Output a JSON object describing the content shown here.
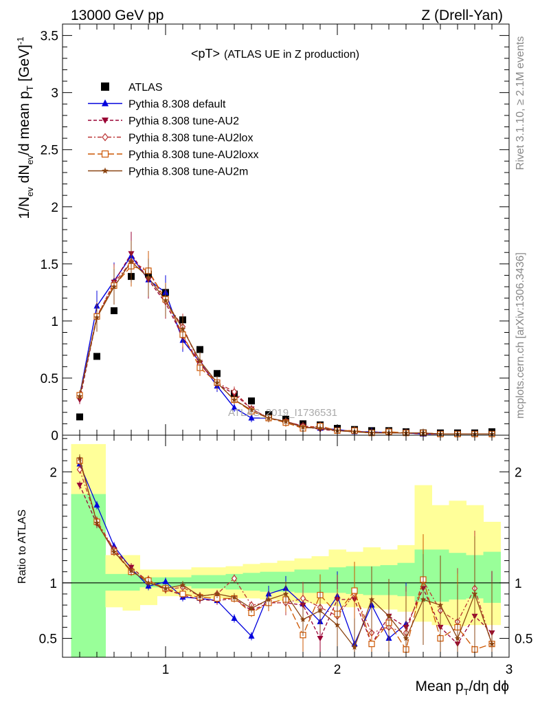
{
  "header": {
    "left": "13000 GeV pp",
    "right": "Z (Drell-Yan)"
  },
  "side_texts": {
    "rivet": "Rivet 3.1.10, ≥ 2.1M events",
    "mcplots": "mcplots.cern.ch [arXiv:1306.3436]"
  },
  "watermark": "ATLAS_2019_I1736531",
  "chart_data": [
    {
      "type": "line",
      "title": "<pT> (ATLAS UE in Z production)",
      "title_main": "<pT>",
      "title_note": "(ATLAS UE in Z production)",
      "ylabel_main": "1/N",
      "ylabel_sub1": "ev",
      "ylabel_mid": " dN",
      "ylabel_sub2": "ev",
      "ylabel_tail": "/d mean p",
      "ylabel_sub3": "T",
      "ylabel_unit": " [GeV]",
      "ylabel_sup": "-1",
      "xlim": [
        0.4,
        3.0
      ],
      "ylim": [
        0,
        3.6
      ],
      "y_ticks": [
        0,
        0.5,
        1,
        1.5,
        2,
        2.5,
        3,
        3.5
      ],
      "y_tick_labels": [
        "0",
        "0.5",
        "1",
        "1.5",
        "2",
        "2.5",
        "3",
        "3.5"
      ],
      "legend_position": "top-left",
      "series": [
        {
          "name": "ATLAS",
          "color": "#000000",
          "marker": "square",
          "line": "none",
          "x": [
            0.5,
            0.6,
            0.7,
            0.8,
            0.9,
            1.0,
            1.1,
            1.2,
            1.3,
            1.4,
            1.5,
            1.6,
            1.7,
            1.8,
            1.9,
            2.0,
            2.1,
            2.2,
            2.3,
            2.4,
            2.5,
            2.6,
            2.7,
            2.8,
            2.9
          ],
          "values": [
            0.16,
            0.69,
            1.09,
            1.39,
            1.41,
            1.25,
            1.01,
            0.75,
            0.54,
            0.36,
            0.3,
            0.18,
            0.14,
            0.1,
            0.09,
            0.06,
            0.05,
            0.04,
            0.04,
            0.03,
            0.02,
            0.02,
            0.02,
            0.02,
            0.03
          ]
        },
        {
          "name": "Pythia 8.308 default",
          "color": "#0000dd",
          "marker": "triangle-up",
          "line": "solid",
          "x": [
            0.5,
            0.6,
            0.7,
            0.8,
            0.9,
            1.0,
            1.1,
            1.2,
            1.3,
            1.4,
            1.5,
            1.6,
            1.7,
            1.8,
            1.9,
            2.0,
            2.1,
            2.2,
            2.3,
            2.4,
            2.5,
            2.6,
            2.7,
            2.8,
            2.9
          ],
          "values": [
            0.35,
            1.13,
            1.35,
            1.57,
            1.36,
            1.25,
            0.83,
            0.64,
            0.43,
            0.24,
            0.15,
            0.15,
            0.12,
            0.07,
            0.06,
            0.05,
            0.03,
            0.03,
            0.02,
            0.02,
            0.01,
            0.01,
            0.01,
            0.01,
            0.01
          ]
        },
        {
          "name": "Pythia 8.308 tune-AU2",
          "color": "#990033",
          "marker": "triangle-down",
          "line": "dashed",
          "x": [
            0.5,
            0.6,
            0.7,
            0.8,
            0.9,
            1.0,
            1.1,
            1.2,
            1.3,
            1.4,
            1.5,
            1.6,
            1.7,
            1.8,
            1.9,
            2.0,
            2.1,
            2.2,
            2.3,
            2.4,
            2.5,
            2.6,
            2.7,
            2.8,
            2.9
          ],
          "values": [
            0.31,
            1.03,
            1.34,
            1.59,
            1.36,
            1.16,
            0.86,
            0.63,
            0.45,
            0.36,
            0.23,
            0.15,
            0.12,
            0.08,
            0.05,
            0.04,
            0.03,
            0.02,
            0.02,
            0.02,
            0.01,
            0.01,
            0.01,
            0.01,
            0.01
          ]
        },
        {
          "name": "Pythia 8.308 tune-AU2lox",
          "color": "#bb3333",
          "marker": "diamond-open",
          "line": "dashdot",
          "x": [
            0.5,
            0.6,
            0.7,
            0.8,
            0.9,
            1.0,
            1.1,
            1.2,
            1.3,
            1.4,
            1.5,
            1.6,
            1.7,
            1.8,
            1.9,
            2.0,
            2.1,
            2.2,
            2.3,
            2.4,
            2.5,
            2.6,
            2.7,
            2.8,
            2.9
          ],
          "values": [
            0.34,
            1.04,
            1.33,
            1.52,
            1.44,
            1.17,
            0.95,
            0.62,
            0.46,
            0.38,
            0.23,
            0.15,
            0.12,
            0.08,
            0.07,
            0.04,
            0.04,
            0.02,
            0.02,
            0.02,
            0.02,
            0.01,
            0.01,
            0.01,
            0.01
          ]
        },
        {
          "name": "Pythia 8.308 tune-AU2loxx",
          "color": "#cc5500",
          "marker": "square-open",
          "line": "longdash",
          "x": [
            0.5,
            0.6,
            0.7,
            0.8,
            0.9,
            1.0,
            1.1,
            1.2,
            1.3,
            1.4,
            1.5,
            1.6,
            1.7,
            1.8,
            1.9,
            2.0,
            2.1,
            2.2,
            2.3,
            2.4,
            2.5,
            2.6,
            2.7,
            2.8,
            2.9
          ],
          "values": [
            0.35,
            1.04,
            1.31,
            1.48,
            1.44,
            1.19,
            0.88,
            0.59,
            0.46,
            0.31,
            0.21,
            0.15,
            0.11,
            0.06,
            0.08,
            0.04,
            0.04,
            0.02,
            0.03,
            0.02,
            0.02,
            0.01,
            0.01,
            0.01,
            0.01
          ]
        },
        {
          "name": "Pythia 8.308 tune-AU2m",
          "color": "#8b4513",
          "marker": "star",
          "line": "solid",
          "x": [
            0.5,
            0.6,
            0.7,
            0.8,
            0.9,
            1.0,
            1.1,
            1.2,
            1.3,
            1.4,
            1.5,
            1.6,
            1.7,
            1.8,
            1.9,
            2.0,
            2.1,
            2.2,
            2.3,
            2.4,
            2.5,
            2.6,
            2.7,
            2.8,
            2.9
          ],
          "values": [
            0.34,
            1.03,
            1.3,
            1.52,
            1.38,
            1.18,
            0.93,
            0.65,
            0.46,
            0.31,
            0.22,
            0.15,
            0.12,
            0.07,
            0.06,
            0.04,
            0.03,
            0.02,
            0.02,
            0.02,
            0.02,
            0.01,
            0.01,
            0.01,
            0.01
          ]
        }
      ]
    },
    {
      "type": "line",
      "ylabel": "Ratio to ATLAS",
      "xlabel_main": "Mean p",
      "xlabel_sub": "T",
      "xlabel_tail": "/dη dϕ",
      "xlim": [
        0.4,
        3.0
      ],
      "ylim": [
        0.33,
        2.33
      ],
      "x_ticks": [
        1,
        2,
        3
      ],
      "x_tick_labels": [
        "1",
        "2",
        "3"
      ],
      "y_ticks": [
        0.5,
        1,
        2
      ],
      "y_tick_labels": [
        "0.5",
        "1",
        "2"
      ],
      "reference_line": 1,
      "bands": {
        "x_edges": [
          0.45,
          0.55,
          0.65,
          0.75,
          0.85,
          0.95,
          1.05,
          1.15,
          1.25,
          1.35,
          1.45,
          1.55,
          1.65,
          1.75,
          1.85,
          1.95,
          2.05,
          2.15,
          2.25,
          2.35,
          2.45,
          2.55,
          2.65,
          2.75,
          2.85,
          2.95
        ],
        "inner_color": "#99ff99",
        "outer_color": "#ffff99",
        "inner_low": [
          0.33,
          0.33,
          0.93,
          0.93,
          0.96,
          0.96,
          0.97,
          0.95,
          0.95,
          0.94,
          0.93,
          0.92,
          0.92,
          0.91,
          0.91,
          0.91,
          0.9,
          0.89,
          0.89,
          0.88,
          0.83,
          0.83,
          0.85,
          0.86,
          0.82
        ],
        "inner_high": [
          1.8,
          1.8,
          1.08,
          1.08,
          1.05,
          1.05,
          1.05,
          1.07,
          1.07,
          1.08,
          1.09,
          1.1,
          1.1,
          1.12,
          1.12,
          1.14,
          1.15,
          1.15,
          1.16,
          1.18,
          1.3,
          1.3,
          1.27,
          1.25,
          1.28
        ],
        "outer_low": [
          0.33,
          0.33,
          0.78,
          0.75,
          0.8,
          0.88,
          0.88,
          0.87,
          0.86,
          0.86,
          0.86,
          0.85,
          0.84,
          0.82,
          0.81,
          0.79,
          0.78,
          0.77,
          0.76,
          0.74,
          0.65,
          0.62,
          0.61,
          0.62,
          0.62
        ],
        "outer_high": [
          2.25,
          2.25,
          1.25,
          1.25,
          1.12,
          1.12,
          1.12,
          1.14,
          1.14,
          1.15,
          1.17,
          1.18,
          1.2,
          1.22,
          1.24,
          1.3,
          1.28,
          1.32,
          1.3,
          1.34,
          1.88,
          1.7,
          1.74,
          1.7,
          1.55
        ]
      },
      "series": [
        {
          "name": "Pythia 8.308 default",
          "color": "#0000dd",
          "x": [
            0.5,
            0.6,
            0.7,
            0.8,
            0.9,
            1.0,
            1.1,
            1.2,
            1.3,
            1.4,
            1.5,
            1.6,
            1.7,
            1.8,
            1.9,
            2.0,
            2.1,
            2.2,
            2.3,
            2.4
          ],
          "values": [
            2.07,
            1.7,
            1.33,
            1.13,
            0.97,
            1.01,
            0.87,
            0.86,
            0.84,
            0.68,
            0.52,
            0.9,
            0.95,
            0.81,
            0.65,
            0.88,
            0.45,
            0.8,
            0.5,
            0.63
          ]
        },
        {
          "name": "Pythia 8.308 tune-AU2",
          "color": "#990033",
          "x": [
            0.5,
            0.6,
            0.7,
            0.8,
            0.9,
            1.0,
            1.1,
            1.2,
            1.3,
            1.4,
            1.5,
            1.6,
            1.7,
            1.8,
            1.9,
            2.0,
            2.1,
            2.2,
            2.3,
            2.4,
            2.5,
            2.6,
            2.7,
            2.8,
            2.9
          ],
          "values": [
            1.88,
            1.53,
            1.3,
            1.14,
            1.01,
            0.94,
            0.89,
            0.85,
            0.84,
            0.86,
            0.75,
            0.82,
            0.82,
            0.8,
            0.5,
            0.85,
            0.85,
            0.45,
            0.7,
            0.6,
            0.95,
            0.6,
            0.45,
            0.7,
            0.55
          ]
        },
        {
          "name": "Pythia 8.308 tune-AU2lox",
          "color": "#bb3333",
          "x": [
            0.5,
            0.6,
            0.7,
            0.8,
            0.9,
            1.0,
            1.1,
            1.2,
            1.3,
            1.4,
            1.5,
            1.6,
            1.7,
            1.8,
            1.9,
            2.0,
            2.1,
            2.2,
            2.3,
            2.4,
            2.5,
            2.6,
            2.7,
            2.8,
            2.9
          ],
          "values": [
            2.02,
            1.56,
            1.3,
            1.1,
            1.03,
            0.94,
            0.96,
            0.88,
            0.9,
            1.04,
            0.8,
            0.82,
            0.82,
            0.86,
            0.78,
            0.7,
            0.9,
            0.55,
            0.6,
            0.55,
            1.02,
            0.75,
            0.65,
            0.95,
            0.45
          ]
        },
        {
          "name": "Pythia 8.308 tune-AU2loxx",
          "color": "#cc5500",
          "x": [
            0.5,
            0.6,
            0.7,
            0.8,
            0.9,
            1.0,
            1.1,
            1.2,
            1.3,
            1.4,
            1.5,
            1.6,
            1.7,
            1.8,
            1.9,
            2.0,
            2.1,
            2.2,
            2.3,
            2.4,
            2.5,
            2.6,
            2.7,
            2.8,
            2.9
          ],
          "values": [
            2.1,
            1.55,
            1.28,
            1.1,
            1.02,
            0.95,
            0.9,
            0.87,
            0.86,
            0.86,
            0.73,
            0.82,
            0.85,
            0.53,
            0.89,
            0.72,
            0.93,
            0.45,
            0.64,
            0.4,
            1.03,
            0.5,
            0.6,
            0.4,
            0.45
          ]
        },
        {
          "name": "Pythia 8.308 tune-AU2m",
          "color": "#8b4513",
          "x": [
            0.5,
            0.6,
            0.7,
            0.8,
            0.9,
            1.0,
            1.1,
            1.2,
            1.3,
            1.4,
            1.5,
            1.6,
            1.7,
            1.8,
            1.9,
            2.0,
            2.1,
            2.2,
            2.3,
            2.4,
            2.5,
            2.6,
            2.7,
            2.8,
            2.9
          ],
          "values": [
            2.12,
            1.54,
            1.28,
            1.11,
            1.0,
            0.95,
            0.98,
            0.88,
            0.9,
            0.87,
            0.77,
            0.85,
            0.9,
            0.67,
            0.75,
            0.62,
            0.42,
            0.85,
            0.7,
            0.5,
            0.85,
            0.8,
            0.5,
            0.9,
            0.45
          ]
        }
      ]
    }
  ]
}
